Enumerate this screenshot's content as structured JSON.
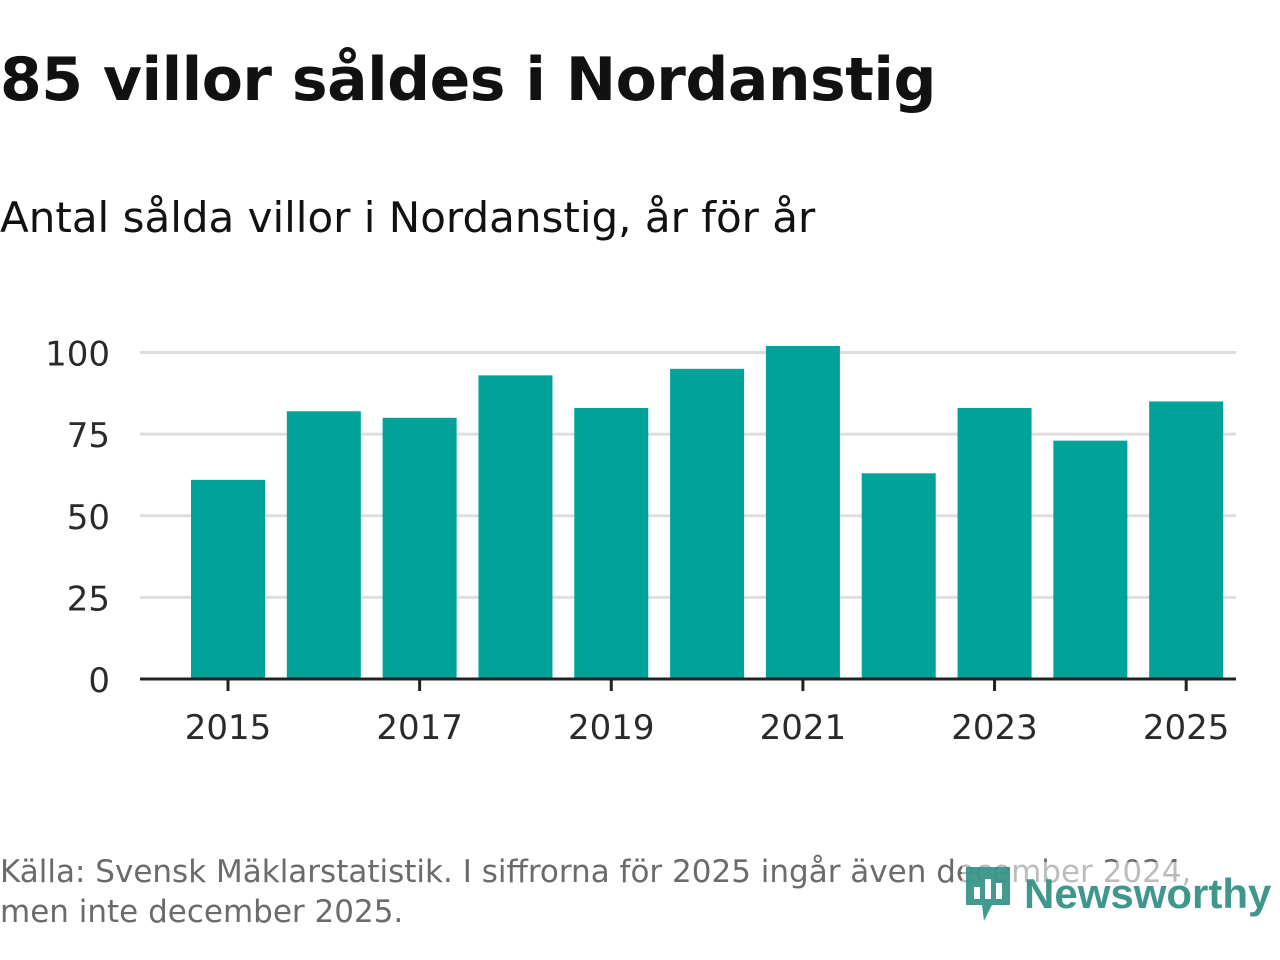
{
  "header": {
    "title": "85 villor såldes i Nordanstig",
    "subtitle": "Antal sålda villor i Nordanstig, år för år"
  },
  "footer": {
    "source_line1": "Källa: Svensk Mäklarstatistik. I siffrorna för 2025 ingår även december 2024,",
    "source_line2": "men inte december 2025.",
    "logo_text": "Newsworthy"
  },
  "colors": {
    "bar": "#00a29a",
    "grid": "#dedede",
    "axis": "#222222",
    "logo": "#2f8f83"
  },
  "chart_data": {
    "type": "bar",
    "title": "Antal sålda villor i Nordanstig, år för år",
    "xlabel": "",
    "ylabel": "",
    "categories": [
      "2015",
      "2016",
      "2017",
      "2018",
      "2019",
      "2020",
      "2021",
      "2022",
      "2023",
      "2024",
      "2025"
    ],
    "values": [
      61,
      82,
      80,
      93,
      83,
      95,
      102,
      63,
      83,
      73,
      85
    ],
    "ylim": [
      0,
      100
    ],
    "yticks": [
      0,
      25,
      50,
      75,
      100
    ],
    "xtick_labels": [
      "2015",
      "2017",
      "2019",
      "2021",
      "2023",
      "2025"
    ],
    "grid": true
  }
}
